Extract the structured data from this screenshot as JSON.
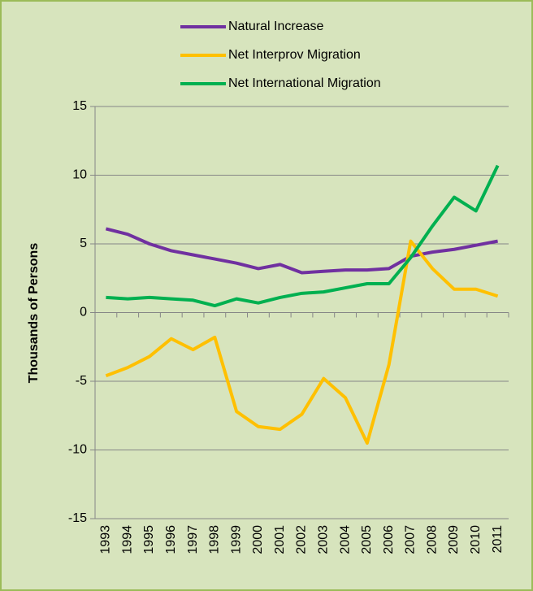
{
  "chart_data": {
    "type": "line",
    "y_label": "Thousands of Persons",
    "categories": [
      "1993",
      "1994",
      "1995",
      "1996",
      "1997",
      "1998",
      "1999",
      "2000",
      "2001",
      "2002",
      "2003",
      "2004",
      "2005",
      "2006",
      "2007",
      "2008",
      "2009",
      "2010",
      "2011"
    ],
    "series": [
      {
        "name": "Natural Increase",
        "color": "#7030a0",
        "values": [
          6.1,
          5.7,
          5.0,
          4.5,
          4.2,
          3.9,
          3.6,
          3.2,
          3.5,
          2.9,
          3.0,
          3.1,
          3.1,
          3.2,
          4.1,
          4.4,
          4.6,
          4.9,
          5.2
        ]
      },
      {
        "name": "Net Interprov Migration",
        "color": "#ffc000",
        "values": [
          -4.6,
          -4.0,
          -3.2,
          -1.9,
          -2.7,
          -1.8,
          -7.2,
          -8.3,
          -8.5,
          -7.4,
          -4.8,
          -6.2,
          -9.5,
          -3.8,
          5.2,
          3.2,
          1.7,
          1.7,
          1.2
        ]
      },
      {
        "name": "Net International Migration",
        "color": "#00b050",
        "values": [
          1.1,
          1.0,
          1.1,
          1.0,
          0.9,
          0.5,
          1.0,
          0.7,
          1.1,
          1.4,
          1.5,
          1.8,
          2.1,
          2.1,
          4.0,
          6.3,
          8.4,
          7.4,
          10.7
        ]
      }
    ],
    "ylim": [
      -15,
      15
    ],
    "yticks": [
      -15,
      -10,
      -5,
      0,
      5,
      10,
      15
    ],
    "grid": true
  }
}
